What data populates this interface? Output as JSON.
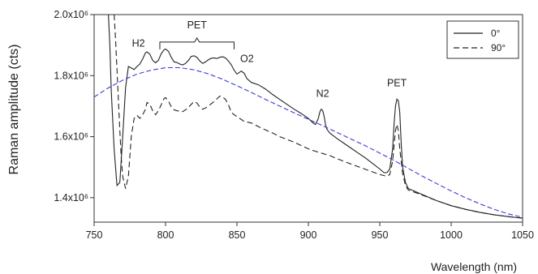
{
  "chart_data": {
    "type": "line",
    "title": "",
    "xlabel": "Wavelength (nm)",
    "ylabel": "Raman amplitude (cts)",
    "xlim": [
      750,
      1050
    ],
    "ylim": [
      1320000,
      2000000
    ],
    "x_ticks": [
      750,
      800,
      850,
      900,
      950,
      1000,
      1050
    ],
    "y_ticks": [
      {
        "value": 1400000,
        "label": "1.4x10⁶"
      },
      {
        "value": 1600000,
        "label": "1.6x10⁶"
      },
      {
        "value": 1800000,
        "label": "1.8x10⁶"
      },
      {
        "value": 2000000,
        "label": "2.0x10⁶"
      }
    ],
    "grid": false,
    "legend_position": "top-right",
    "series": [
      {
        "name": "0°",
        "color": "#222222",
        "style": "solid",
        "points": [
          [
            760,
            2000000
          ],
          [
            761,
            1900000
          ],
          [
            762,
            1750000
          ],
          [
            764,
            1560000
          ],
          [
            766,
            1440000
          ],
          [
            768,
            1450000
          ],
          [
            770,
            1600000
          ],
          [
            772,
            1760000
          ],
          [
            774,
            1830000
          ],
          [
            776,
            1825000
          ],
          [
            778,
            1820000
          ],
          [
            780,
            1830000
          ],
          [
            782,
            1838000
          ],
          [
            784,
            1855000
          ],
          [
            786,
            1875000
          ],
          [
            787,
            1878000
          ],
          [
            789,
            1870000
          ],
          [
            791,
            1850000
          ],
          [
            793,
            1842000
          ],
          [
            795,
            1850000
          ],
          [
            797,
            1872000
          ],
          [
            799,
            1885000
          ],
          [
            800,
            1887000
          ],
          [
            802,
            1880000
          ],
          [
            804,
            1860000
          ],
          [
            806,
            1845000
          ],
          [
            808,
            1843000
          ],
          [
            810,
            1838000
          ],
          [
            812,
            1835000
          ],
          [
            814,
            1840000
          ],
          [
            816,
            1850000
          ],
          [
            818,
            1863000
          ],
          [
            820,
            1865000
          ],
          [
            822,
            1860000
          ],
          [
            824,
            1848000
          ],
          [
            826,
            1840000
          ],
          [
            828,
            1845000
          ],
          [
            830,
            1852000
          ],
          [
            832,
            1857000
          ],
          [
            834,
            1858000
          ],
          [
            836,
            1856000
          ],
          [
            838,
            1860000
          ],
          [
            840,
            1862000
          ],
          [
            842,
            1858000
          ],
          [
            844,
            1848000
          ],
          [
            846,
            1836000
          ],
          [
            848,
            1818000
          ],
          [
            850,
            1805000
          ],
          [
            853,
            1815000
          ],
          [
            855,
            1808000
          ],
          [
            857,
            1790000
          ],
          [
            860,
            1778000
          ],
          [
            865,
            1770000
          ],
          [
            870,
            1756000
          ],
          [
            875,
            1738000
          ],
          [
            880,
            1722000
          ],
          [
            885,
            1706000
          ],
          [
            890,
            1690000
          ],
          [
            895,
            1676000
          ],
          [
            900,
            1660000
          ],
          [
            903,
            1646000
          ],
          [
            905,
            1640000
          ],
          [
            907,
            1660000
          ],
          [
            908,
            1680000
          ],
          [
            909,
            1690000
          ],
          [
            910,
            1686000
          ],
          [
            911,
            1668000
          ],
          [
            912,
            1640000
          ],
          [
            913,
            1624000
          ],
          [
            915,
            1612000
          ],
          [
            920,
            1594000
          ],
          [
            925,
            1578000
          ],
          [
            930,
            1562000
          ],
          [
            935,
            1546000
          ],
          [
            940,
            1530000
          ],
          [
            945,
            1512000
          ],
          [
            950,
            1494000
          ],
          [
            953,
            1482000
          ],
          [
            955,
            1482000
          ],
          [
            957,
            1494000
          ],
          [
            959,
            1560000
          ],
          [
            960,
            1640000
          ],
          [
            961,
            1700000
          ],
          [
            962,
            1723000
          ],
          [
            963,
            1718000
          ],
          [
            964,
            1680000
          ],
          [
            965,
            1580000
          ],
          [
            966,
            1500000
          ],
          [
            968,
            1450000
          ],
          [
            970,
            1430000
          ],
          [
            975,
            1420000
          ],
          [
            980,
            1410000
          ],
          [
            990,
            1390000
          ],
          [
            1000,
            1374000
          ],
          [
            1010,
            1362000
          ],
          [
            1020,
            1352000
          ],
          [
            1030,
            1344000
          ],
          [
            1040,
            1338000
          ],
          [
            1050,
            1333000
          ]
        ]
      },
      {
        "name": "90°",
        "color": "#222222",
        "style": "dashed",
        "points": [
          [
            764,
            2000000
          ],
          [
            765,
            1920000
          ],
          [
            766,
            1820000
          ],
          [
            767,
            1720000
          ],
          [
            768,
            1620000
          ],
          [
            769,
            1530000
          ],
          [
            770,
            1470000
          ],
          [
            772,
            1430000
          ],
          [
            774,
            1470000
          ],
          [
            776,
            1600000
          ],
          [
            778,
            1660000
          ],
          [
            780,
            1670000
          ],
          [
            782,
            1660000
          ],
          [
            784,
            1672000
          ],
          [
            786,
            1690000
          ],
          [
            787,
            1712000
          ],
          [
            789,
            1706000
          ],
          [
            791,
            1685000
          ],
          [
            793,
            1672000
          ],
          [
            795,
            1685000
          ],
          [
            797,
            1705000
          ],
          [
            799,
            1725000
          ],
          [
            800,
            1728000
          ],
          [
            802,
            1717000
          ],
          [
            804,
            1698000
          ],
          [
            806,
            1688000
          ],
          [
            808,
            1685000
          ],
          [
            810,
            1683000
          ],
          [
            812,
            1682000
          ],
          [
            814,
            1688000
          ],
          [
            816,
            1695000
          ],
          [
            818,
            1706000
          ],
          [
            820,
            1715000
          ],
          [
            822,
            1710000
          ],
          [
            824,
            1697000
          ],
          [
            826,
            1690000
          ],
          [
            828,
            1694000
          ],
          [
            830,
            1700000
          ],
          [
            832,
            1708000
          ],
          [
            834,
            1715000
          ],
          [
            836,
            1724000
          ],
          [
            838,
            1733000
          ],
          [
            840,
            1730000
          ],
          [
            842,
            1722000
          ],
          [
            844,
            1705000
          ],
          [
            846,
            1680000
          ],
          [
            848,
            1672000
          ],
          [
            850,
            1666000
          ],
          [
            855,
            1650000
          ],
          [
            860,
            1645000
          ],
          [
            865,
            1633000
          ],
          [
            870,
            1622000
          ],
          [
            875,
            1612000
          ],
          [
            880,
            1600000
          ],
          [
            890,
            1582000
          ],
          [
            900,
            1560000
          ],
          [
            905,
            1552000
          ],
          [
            910,
            1545000
          ],
          [
            915,
            1538000
          ],
          [
            920,
            1528000
          ],
          [
            930,
            1510000
          ],
          [
            940,
            1493000
          ],
          [
            950,
            1476000
          ],
          [
            955,
            1470000
          ],
          [
            957,
            1476000
          ],
          [
            959,
            1520000
          ],
          [
            961,
            1620000
          ],
          [
            962,
            1640000
          ],
          [
            963,
            1620000
          ],
          [
            964,
            1560000
          ],
          [
            966,
            1480000
          ],
          [
            968,
            1440000
          ],
          [
            970,
            1425000
          ],
          [
            980,
            1408000
          ],
          [
            990,
            1390000
          ],
          [
            1000,
            1374000
          ],
          [
            1010,
            1362000
          ],
          [
            1020,
            1352000
          ],
          [
            1030,
            1344000
          ],
          [
            1040,
            1338000
          ],
          [
            1050,
            1333000
          ]
        ]
      },
      {
        "name": "",
        "color": "#3b3bd6",
        "style": "dashed",
        "points": [
          [
            750,
            1730000
          ],
          [
            760,
            1760000
          ],
          [
            770,
            1785000
          ],
          [
            780,
            1805000
          ],
          [
            790,
            1818000
          ],
          [
            800,
            1826000
          ],
          [
            810,
            1826000
          ],
          [
            820,
            1819000
          ],
          [
            830,
            1806000
          ],
          [
            840,
            1788000
          ],
          [
            850,
            1767000
          ],
          [
            860,
            1745000
          ],
          [
            870,
            1722000
          ],
          [
            880,
            1700000
          ],
          [
            890,
            1678000
          ],
          [
            900,
            1657000
          ],
          [
            910,
            1636000
          ],
          [
            920,
            1614000
          ],
          [
            930,
            1592000
          ],
          [
            940,
            1570000
          ],
          [
            950,
            1546000
          ],
          [
            960,
            1522000
          ],
          [
            970,
            1496000
          ],
          [
            980,
            1470000
          ],
          [
            990,
            1446000
          ],
          [
            1000,
            1422000
          ],
          [
            1010,
            1400000
          ],
          [
            1020,
            1380000
          ],
          [
            1030,
            1362000
          ],
          [
            1040,
            1347000
          ],
          [
            1050,
            1336000
          ]
        ]
      }
    ],
    "annotations": [
      {
        "text": "H2",
        "x": 781,
        "y": 1895000
      },
      {
        "text": "PET",
        "x": 822,
        "y": 1955000
      },
      {
        "text": "O2",
        "x": 857,
        "y": 1845000
      },
      {
        "text": "N2",
        "x": 910,
        "y": 1730000
      },
      {
        "text": "PET",
        "x": 962,
        "y": 1765000
      }
    ],
    "bracket": {
      "x_start": 796,
      "x_end": 848,
      "x_mid": 822,
      "y": 1910000
    }
  }
}
